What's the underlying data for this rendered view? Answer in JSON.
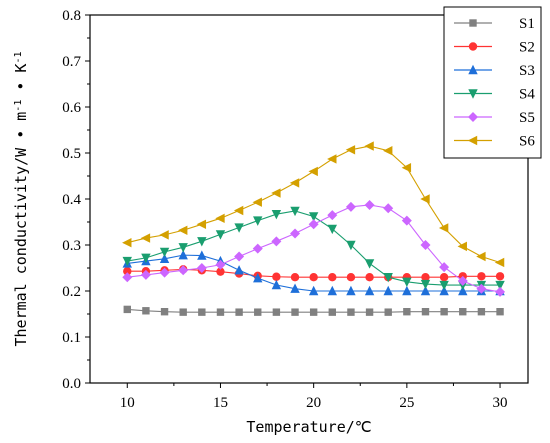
{
  "chart_data": {
    "type": "line",
    "xlabel": "Temperature/℃",
    "ylabel_main": "Thermal conductivity/W",
    "ylabel_m": "m",
    "ylabel_k": "K",
    "ylabel_exp": "-1",
    "xlim": [
      8,
      31.5
    ],
    "ylim": [
      0,
      0.8
    ],
    "xticks": [
      10,
      15,
      20,
      25,
      30
    ],
    "yticks": [
      0.0,
      0.1,
      0.2,
      0.3,
      0.4,
      0.5,
      0.6,
      0.7,
      0.8
    ],
    "legend_position": "top-right",
    "x": [
      10,
      11,
      12,
      13,
      14,
      15,
      16,
      17,
      18,
      19,
      20,
      21,
      22,
      23,
      24,
      25,
      26,
      27,
      28,
      29,
      30
    ],
    "series": [
      {
        "name": "S1",
        "color": "#808080",
        "marker": "square",
        "values": [
          0.16,
          0.157,
          0.155,
          0.154,
          0.154,
          0.154,
          0.154,
          0.154,
          0.154,
          0.154,
          0.154,
          0.154,
          0.154,
          0.154,
          0.154,
          0.155,
          0.155,
          0.155,
          0.155,
          0.155,
          0.155
        ]
      },
      {
        "name": "S2",
        "color": "#ff3333",
        "marker": "circle",
        "values": [
          0.243,
          0.243,
          0.245,
          0.247,
          0.245,
          0.242,
          0.238,
          0.233,
          0.231,
          0.23,
          0.23,
          0.23,
          0.23,
          0.23,
          0.23,
          0.23,
          0.23,
          0.23,
          0.232,
          0.232,
          0.232
        ]
      },
      {
        "name": "S3",
        "color": "#1e6fd9",
        "marker": "triangle-up",
        "values": [
          0.26,
          0.265,
          0.27,
          0.278,
          0.277,
          0.265,
          0.245,
          0.228,
          0.213,
          0.205,
          0.2,
          0.2,
          0.2,
          0.2,
          0.2,
          0.2,
          0.2,
          0.2,
          0.2,
          0.2,
          0.2
        ]
      },
      {
        "name": "S4",
        "color": "#1a9e6f",
        "marker": "triangle-down",
        "values": [
          0.265,
          0.272,
          0.285,
          0.295,
          0.308,
          0.323,
          0.338,
          0.353,
          0.367,
          0.374,
          0.362,
          0.335,
          0.3,
          0.26,
          0.23,
          0.22,
          0.215,
          0.213,
          0.213,
          0.213,
          0.213
        ]
      },
      {
        "name": "S5",
        "color": "#cc66ff",
        "marker": "diamond",
        "values": [
          0.23,
          0.235,
          0.24,
          0.245,
          0.25,
          0.257,
          0.275,
          0.292,
          0.308,
          0.325,
          0.345,
          0.365,
          0.383,
          0.387,
          0.38,
          0.353,
          0.3,
          0.252,
          0.222,
          0.205,
          0.198
        ]
      },
      {
        "name": "S6",
        "color": "#d4a000",
        "marker": "triangle-left",
        "values": [
          0.305,
          0.315,
          0.322,
          0.332,
          0.345,
          0.358,
          0.375,
          0.393,
          0.413,
          0.435,
          0.46,
          0.487,
          0.507,
          0.515,
          0.505,
          0.468,
          0.4,
          0.337,
          0.297,
          0.275,
          0.262
        ]
      }
    ]
  }
}
